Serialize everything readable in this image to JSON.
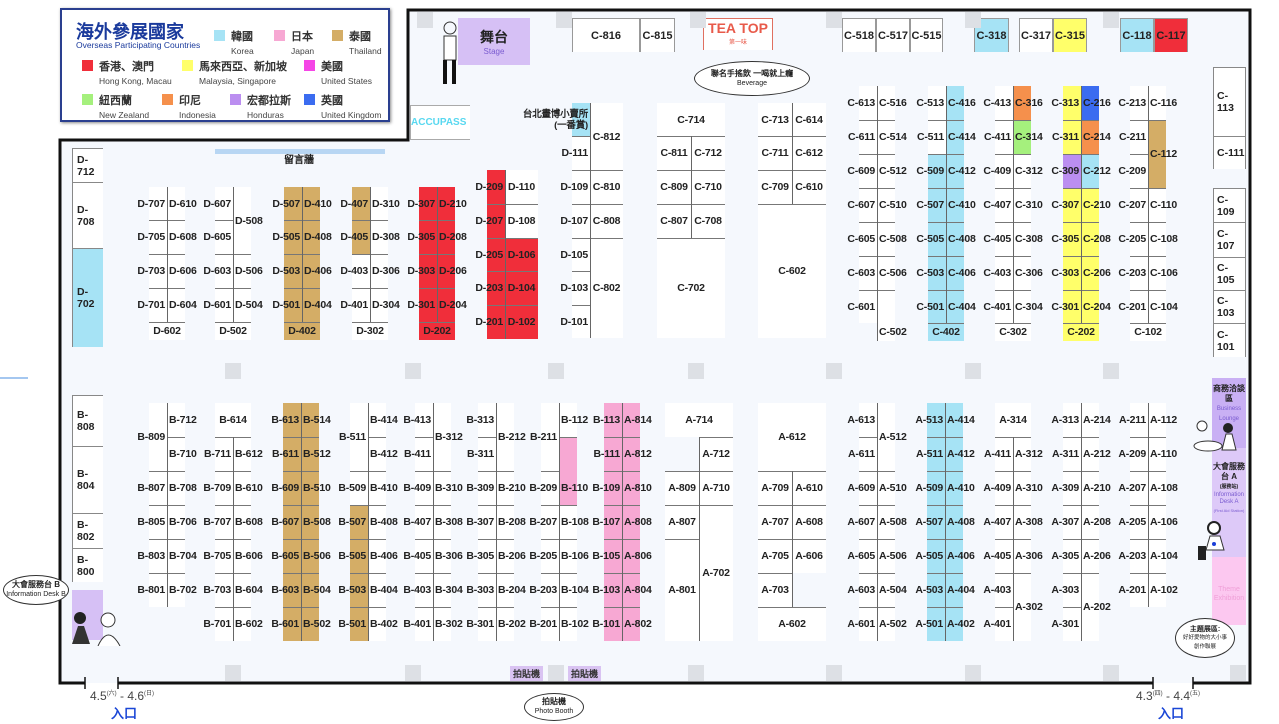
{
  "legend": {
    "title": "海外參展國家",
    "subtitle": "Overseas Participating Countries",
    "items": [
      {
        "code": "KR",
        "zh": "韓國",
        "en": "Korea",
        "color": "#a6e3f5"
      },
      {
        "code": "JP",
        "zh": "日本",
        "en": "Japan",
        "color": "#f7a8d3"
      },
      {
        "code": "TH",
        "zh": "泰國",
        "en": "Thailand",
        "color": "#d4ad66"
      },
      {
        "code": "HK",
        "zh": "香港、澳門",
        "en": "Hong Kong, Macau",
        "color": "#f02e3a"
      },
      {
        "code": "MY",
        "zh": "馬來西亞、新加坡",
        "en": "Malaysia, Singapore",
        "color": "#ffff6a"
      },
      {
        "code": "US",
        "zh": "美國",
        "en": "United States",
        "color": "#f545e6"
      },
      {
        "code": "NZ",
        "zh": "紐西蘭",
        "en": "New Zealand",
        "color": "#a5f07d"
      },
      {
        "code": "ID",
        "zh": "印尼",
        "en": "Indonesia",
        "color": "#f5904c"
      },
      {
        "code": "HN",
        "zh": "宏都拉斯",
        "en": "Honduras",
        "color": "#bb8ef0"
      },
      {
        "code": "UK",
        "zh": "英國",
        "en": "United Kingdom",
        "color": "#3b6cf0"
      }
    ]
  },
  "stage": {
    "zh": "舞台",
    "en": "Stage"
  },
  "accupass": "ACCUPASS",
  "message_wall": "留言牆",
  "teatop": {
    "name": "TEA TOP",
    "sub": "第一味",
    "bubble_zh": "聯名手搖飲 一喝就上癮",
    "bubble_en": "Beverage"
  },
  "info_desk_b": {
    "zh": "大會服務台 B",
    "en": "Information Desk B"
  },
  "business_lounge": {
    "zh": "商務洽談區",
    "en": "Business Lounge"
  },
  "info_desk_a": {
    "zh": "大會服務台 A",
    "note": "(服務站)",
    "en": "Information Desk A",
    "en_note": "(First Aid Station)"
  },
  "theme": {
    "en": "Theme Exhibition",
    "bubble_title": "主題展區:",
    "bubble_l1": "好好愛物的大小事",
    "bubble_l2": "創作聯展"
  },
  "photo_booth": {
    "label": "拍貼機",
    "bubble_zh": "拍貼機",
    "bubble_en": "Photo Booth"
  },
  "entrances": [
    {
      "dates": "4.5",
      "d1": "(六)",
      "sep": " - ",
      "dates2": "4.6",
      "d2": "(日)",
      "label": "入口"
    },
    {
      "dates": "4.3",
      "d1": "(四)",
      "sep": " - ",
      "dates2": "4.4",
      "d2": "(五)",
      "label": "入口"
    }
  ],
  "top_booths": [
    "C-816",
    "C-815",
    "C-518",
    "C-517",
    "C-515",
    "C-318",
    "C-317",
    "C-315",
    "C-118",
    "C-117"
  ],
  "wall_booths": {
    "d": [
      "D-712",
      "D-708",
      "D-702"
    ],
    "b": [
      "B-808",
      "B-804",
      "B-802",
      "B-800"
    ],
    "c": [
      "C-113",
      "C-111",
      "C-109",
      "C-107",
      "C-105",
      "C-103",
      "C-101"
    ]
  },
  "columns": [
    {
      "left": [
        "D-707",
        "D-705",
        "D-703",
        "D-701"
      ],
      "right": [
        "D-610",
        "D-608",
        "D-606",
        "D-604"
      ],
      "full": [
        "D-602"
      ]
    },
    {
      "left": [
        "D-607",
        "D-605",
        "D-603",
        "D-601"
      ],
      "right": [
        "D-508",
        "D-506",
        "D-504"
      ],
      "full": [
        "D-502"
      ]
    },
    {
      "left": [
        "D-507",
        "D-505",
        "D-503",
        "D-501"
      ],
      "right": [
        "D-410",
        "D-408",
        "D-406",
        "D-404"
      ],
      "full": [
        "D-402"
      ]
    },
    {
      "left": [
        "D-407",
        "D-405",
        "D-403",
        "D-401"
      ],
      "right": [
        "D-310",
        "D-308",
        "D-306",
        "D-304"
      ],
      "full": [
        "D-302"
      ]
    },
    {
      "left": [
        "D-307",
        "D-305",
        "D-303",
        "D-301"
      ],
      "right": [
        "D-210",
        "D-208",
        "D-206",
        "D-204"
      ],
      "full": [
        "D-202"
      ]
    },
    {
      "left": [
        "D-209",
        "D-207",
        "D-205",
        "D-203",
        "D-201"
      ],
      "right": [
        "D-110",
        "D-108",
        "D-106",
        "D-104",
        "D-102"
      ],
      "full": []
    },
    {
      "left": [
        "台北畫博小賣所\n(一番賞)",
        "D-111",
        "D-109",
        "D-107",
        "D-105",
        "D-103",
        "D-101"
      ],
      "right": [
        "C-812",
        "C-810",
        "C-808",
        "C-802"
      ],
      "full": []
    },
    {
      "left": [
        "C-811",
        "C-809",
        "C-807"
      ],
      "right": [
        "C-712",
        "C-710",
        "C-708"
      ],
      "full": [
        "C-714",
        "C-702"
      ]
    },
    {
      "left": [
        "C-713",
        "C-711",
        "C-709"
      ],
      "right": [
        "C-614",
        "C-612",
        "C-610"
      ],
      "full": [
        "C-602"
      ]
    },
    {
      "left": [
        "C-613",
        "C-611",
        "C-609",
        "C-607",
        "C-605",
        "C-603",
        "C-601"
      ],
      "right": [
        "C-516",
        "C-514",
        "C-512",
        "C-510",
        "C-508",
        "C-506",
        "C-502"
      ],
      "full": []
    },
    {
      "left": [
        "C-513",
        "C-511",
        "C-509",
        "C-507",
        "C-505",
        "C-503",
        "C-501"
      ],
      "right": [
        "C-416",
        "C-414",
        "C-412",
        "C-410",
        "C-408",
        "C-406",
        "C-404"
      ],
      "full": [
        "C-402"
      ]
    },
    {
      "left": [
        "C-413",
        "C-411",
        "C-409",
        "C-407",
        "C-405",
        "C-403",
        "C-401"
      ],
      "right": [
        "C-316",
        "C-314",
        "C-312",
        "C-310",
        "C-308",
        "C-306",
        "C-304"
      ],
      "full": [
        "C-302"
      ]
    },
    {
      "left": [
        "C-313",
        "C-311",
        "C-309",
        "C-307",
        "C-305",
        "C-303",
        "C-301"
      ],
      "right": [
        "C-216",
        "C-214",
        "C-212",
        "C-210",
        "C-208",
        "C-206",
        "C-204"
      ],
      "full": [
        "C-202"
      ]
    },
    {
      "left": [
        "C-213",
        "C-211",
        "C-209",
        "C-207",
        "C-205",
        "C-203",
        "C-201"
      ],
      "right": [
        "C-116",
        "C-112",
        "C-110",
        "C-108",
        "C-106",
        "C-104"
      ],
      "full": [
        "C-102"
      ]
    },
    {
      "left": [
        "B-809",
        "B-807",
        "B-805",
        "B-803",
        "B-801"
      ],
      "right": [
        "B-712",
        "B-710",
        "B-708",
        "B-706",
        "B-704",
        "B-702"
      ],
      "full": []
    },
    {
      "left": [
        "B-711",
        "B-709",
        "B-707",
        "B-705",
        "B-703",
        "B-701"
      ],
      "right": [
        "B-612",
        "B-610",
        "B-608",
        "B-606",
        "B-604",
        "B-602"
      ],
      "full": [
        "B-614"
      ]
    },
    {
      "left": [
        "B-613",
        "B-611",
        "B-609",
        "B-607",
        "B-605",
        "B-603",
        "B-601"
      ],
      "right": [
        "B-514",
        "B-512",
        "B-510",
        "B-508",
        "B-506",
        "B-504",
        "B-502"
      ],
      "full": []
    },
    {
      "left": [
        "B-511",
        "B-509",
        "B-507",
        "B-505",
        "B-503",
        "B-501"
      ],
      "right": [
        "B-414",
        "B-412",
        "B-410",
        "B-408",
        "B-406",
        "B-404",
        "B-402"
      ],
      "full": []
    },
    {
      "left": [
        "B-413",
        "B-411",
        "B-409",
        "B-407",
        "B-405",
        "B-403",
        "B-401"
      ],
      "right": [
        "B-312",
        "B-310",
        "B-308",
        "B-306",
        "B-304",
        "B-302"
      ],
      "full": []
    },
    {
      "left": [
        "B-313",
        "B-311",
        "B-309",
        "B-307",
        "B-305",
        "B-303",
        "B-301"
      ],
      "right": [
        "B-212",
        "B-210",
        "B-208",
        "B-206",
        "B-204",
        "B-202"
      ],
      "full": []
    },
    {
      "left": [
        "B-211",
        "B-209",
        "B-207",
        "B-205",
        "B-203",
        "B-201"
      ],
      "right": [
        "B-112",
        "B-110",
        "B-108",
        "B-106",
        "B-104",
        "B-102"
      ],
      "full": []
    },
    {
      "left": [
        "B-113",
        "B-111",
        "B-109",
        "B-107",
        "B-105",
        "B-103",
        "B-101"
      ],
      "right": [
        "A-814",
        "A-812",
        "A-810",
        "A-808",
        "A-806",
        "A-804",
        "A-802"
      ],
      "full": []
    },
    {
      "left": [
        "A-809",
        "A-807",
        "A-801"
      ],
      "right": [
        "A-712",
        "A-710",
        "A-702"
      ],
      "full": [
        "A-714"
      ]
    },
    {
      "left": [
        "A-709",
        "A-707",
        "A-705",
        "A-703"
      ],
      "right": [
        "A-610",
        "A-608",
        "A-606"
      ],
      "full": [
        "A-612",
        "A-602"
      ]
    },
    {
      "left": [
        "A-613",
        "A-611",
        "A-609",
        "A-607",
        "A-605",
        "A-603",
        "A-601"
      ],
      "right": [
        "A-512",
        "A-510",
        "A-508",
        "A-506",
        "A-504",
        "A-502"
      ],
      "full": []
    },
    {
      "left": [
        "A-513",
        "A-511",
        "A-509",
        "A-507",
        "A-505",
        "A-503",
        "A-501"
      ],
      "right": [
        "A-414",
        "A-412",
        "A-410",
        "A-408",
        "A-406",
        "A-404",
        "A-402"
      ],
      "full": []
    },
    {
      "left": [
        "A-411",
        "A-409",
        "A-407",
        "A-405",
        "A-403",
        "A-401"
      ],
      "right": [
        "A-312",
        "A-310",
        "A-308",
        "A-306",
        "A-302"
      ],
      "full": [
        "A-314"
      ]
    },
    {
      "left": [
        "A-313",
        "A-311",
        "A-309",
        "A-307",
        "A-305",
        "A-303",
        "A-301"
      ],
      "right": [
        "A-214",
        "A-212",
        "A-210",
        "A-208",
        "A-206",
        "A-202"
      ],
      "full": []
    },
    {
      "left": [
        "A-211",
        "A-209",
        "A-207",
        "A-205",
        "A-203",
        "A-201"
      ],
      "right": [
        "A-112",
        "A-110",
        "A-108",
        "A-106",
        "A-104",
        "A-102"
      ],
      "full": []
    }
  ],
  "highlights": {
    "KR": [
      "D-702",
      "台北畫博小賣所\n(一番賞)",
      "C-318",
      "C-118",
      "C-416",
      "C-414",
      "C-412",
      "C-410",
      "C-408",
      "C-406",
      "C-404",
      "C-509",
      "C-507",
      "C-505",
      "C-503",
      "C-501",
      "C-402",
      "C-212",
      "A-513",
      "A-511",
      "A-509",
      "A-507",
      "A-505",
      "A-503",
      "A-501",
      "A-414",
      "A-412",
      "A-410",
      "A-408",
      "A-406",
      "A-404",
      "A-402"
    ],
    "JP": [
      "B-110",
      "B-113",
      "B-111",
      "B-109",
      "B-107",
      "B-105",
      "B-103",
      "B-101",
      "A-814",
      "A-812",
      "A-810",
      "A-808",
      "A-806",
      "A-804",
      "A-802"
    ],
    "TH": [
      "D-507",
      "D-505",
      "D-503",
      "D-501",
      "D-410",
      "D-408",
      "D-406",
      "D-404",
      "D-402",
      "D-407",
      "D-405",
      "C-112",
      "B-613",
      "B-611",
      "B-609",
      "B-607",
      "B-605",
      "B-603",
      "B-601",
      "B-514",
      "B-512",
      "B-510",
      "B-508",
      "B-506",
      "B-504",
      "B-502",
      "B-507",
      "B-505",
      "B-503",
      "B-501"
    ],
    "HK": [
      "D-307",
      "D-305",
      "D-303",
      "D-301",
      "D-210",
      "D-208",
      "D-206",
      "D-204",
      "D-202",
      "D-209",
      "D-207",
      "D-205",
      "D-203",
      "D-201",
      "D-106",
      "D-104",
      "D-102",
      "C-117"
    ],
    "MY": [
      "C-315",
      "C-313",
      "C-311",
      "C-307",
      "C-305",
      "C-303",
      "C-301",
      "C-210",
      "C-208",
      "C-206",
      "C-204",
      "C-202"
    ],
    "ID": [
      "C-316",
      "C-214"
    ],
    "NZ": [
      "C-314"
    ],
    "HN": [
      "C-309"
    ],
    "UK": [
      "C-216"
    ]
  }
}
